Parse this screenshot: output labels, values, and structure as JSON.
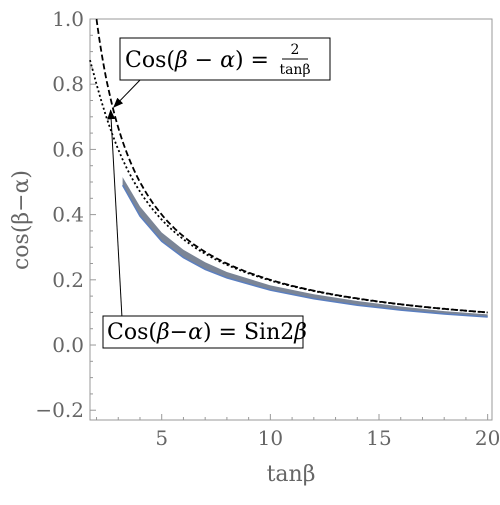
{
  "chart_data": {
    "type": "line",
    "xlabel": "tanβ",
    "ylabel": "cos(β−α)",
    "xlim": [
      1.7,
      20.2
    ],
    "ylim": [
      -0.23,
      1.0
    ],
    "x_ticks": [
      5,
      10,
      15,
      20
    ],
    "x_tick_labels": [
      "5",
      "10",
      "15",
      "20"
    ],
    "y_ticks": [
      -0.2,
      0.0,
      0.2,
      0.4,
      0.6,
      0.8,
      1.0
    ],
    "y_tick_labels": [
      "−0.2",
      "0.0",
      "0.2",
      "0.4",
      "0.6",
      "0.8",
      "1.0"
    ],
    "grid": false,
    "series": [
      {
        "formula": "2/tanβ",
        "style": "dashed",
        "color": "#000000",
        "x_range": [
          2.0,
          20.0
        ]
      },
      {
        "formula": "sin2β",
        "style": "dotted",
        "color": "#000000",
        "x_range": [
          1.7,
          20.0
        ]
      },
      {
        "style": "band",
        "color": "#7b8596",
        "edge_color": "#5b7fc0",
        "x": [
          3.2,
          4,
          5,
          6,
          7,
          8,
          10,
          12,
          14,
          16,
          18,
          20
        ],
        "upper": [
          0.515,
          0.425,
          0.345,
          0.292,
          0.254,
          0.224,
          0.183,
          0.156,
          0.135,
          0.118,
          0.104,
          0.094
        ],
        "lower": [
          0.49,
          0.395,
          0.318,
          0.268,
          0.232,
          0.206,
          0.168,
          0.142,
          0.122,
          0.107,
          0.095,
          0.086
        ]
      }
    ],
    "annotations": [
      {
        "prefix": "Cos(",
        "beta": "β",
        "middle": " − ",
        "alpha": "α",
        "suffix": ") =",
        "numerator": "2",
        "denominator": "tanβ",
        "points_to": "dashed-curve",
        "arrow_target": [
          2.8,
          0.73
        ]
      },
      {
        "prefix": "Cos(",
        "beta": "β",
        "middle": "−",
        "alpha": "α",
        "suffix": ") = Sin2",
        "beta2": "β",
        "points_to": "dotted-curve",
        "arrow_target": [
          2.65,
          0.72
        ]
      }
    ]
  }
}
